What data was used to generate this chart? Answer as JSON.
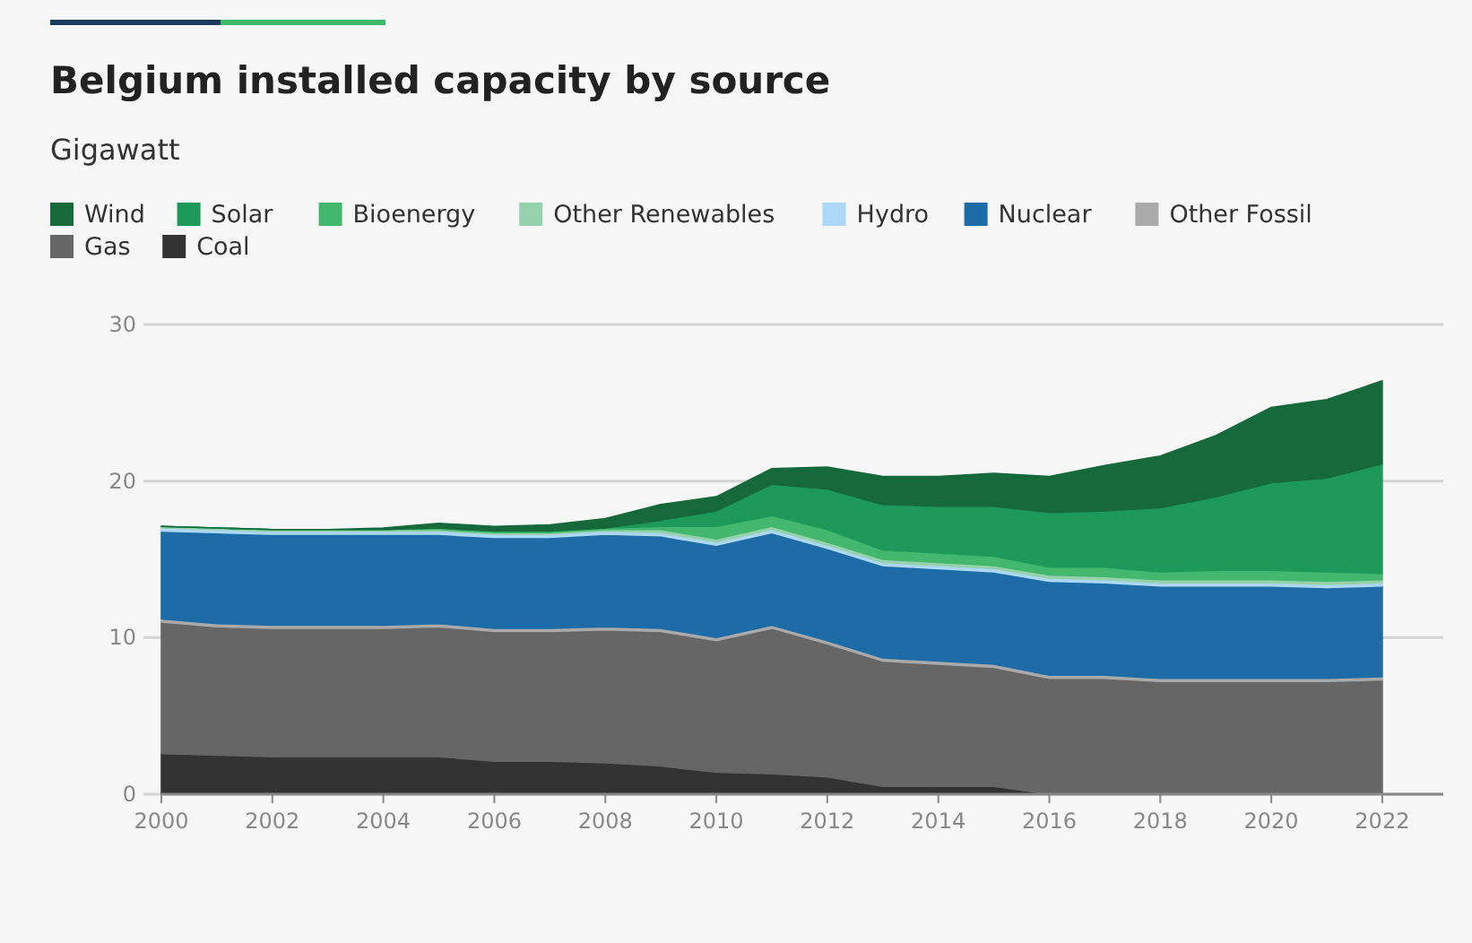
{
  "chart_data": {
    "type": "area",
    "title": "Belgium installed capacity by source",
    "subtitle": "Gigawatt",
    "stacked": true,
    "legend": "top",
    "grid": "y",
    "x": [
      2000,
      2001,
      2002,
      2003,
      2004,
      2005,
      2006,
      2007,
      2008,
      2009,
      2010,
      2011,
      2012,
      2013,
      2014,
      2015,
      2016,
      2017,
      2018,
      2019,
      2020,
      2021,
      2022
    ],
    "xlim": [
      2000,
      2023.1
    ],
    "xticks": [
      2000,
      2002,
      2004,
      2006,
      2008,
      2010,
      2012,
      2014,
      2016,
      2018,
      2020,
      2022
    ],
    "ylim": [
      0,
      30
    ],
    "yticks": [
      0,
      10,
      20,
      30
    ],
    "series": [
      {
        "name": "Coal",
        "color": "#333333",
        "values": [
          2.6,
          2.5,
          2.4,
          2.4,
          2.4,
          2.4,
          2.1,
          2.1,
          2.0,
          1.8,
          1.4,
          1.3,
          1.1,
          0.5,
          0.5,
          0.5,
          0,
          0,
          0,
          0,
          0,
          0,
          0
        ]
      },
      {
        "name": "Gas",
        "color": "#666666",
        "values": [
          8.4,
          8.2,
          8.2,
          8.2,
          8.2,
          8.3,
          8.3,
          8.3,
          8.5,
          8.6,
          8.4,
          9.3,
          8.5,
          8.0,
          7.8,
          7.6,
          7.4,
          7.4,
          7.2,
          7.2,
          7.2,
          7.2,
          7.3
        ]
      },
      {
        "name": "Other Fossil",
        "color": "#aaaaaa",
        "values": [
          0.2,
          0.2,
          0.2,
          0.2,
          0.2,
          0.2,
          0.2,
          0.2,
          0.2,
          0.2,
          0.2,
          0.2,
          0.2,
          0.2,
          0.2,
          0.2,
          0.2,
          0.2,
          0.2,
          0.2,
          0.2,
          0.2,
          0.2
        ]
      },
      {
        "name": "Nuclear",
        "color": "#1d6ca7",
        "values": [
          5.6,
          5.8,
          5.8,
          5.8,
          5.8,
          5.7,
          5.8,
          5.8,
          5.9,
          5.9,
          5.9,
          5.9,
          5.9,
          5.9,
          5.9,
          5.9,
          6.0,
          5.9,
          5.9,
          5.9,
          5.9,
          5.8,
          5.8
        ]
      },
      {
        "name": "Hydro",
        "color": "#acd8f5",
        "values": [
          0.2,
          0.2,
          0.2,
          0.2,
          0.2,
          0.2,
          0.2,
          0.2,
          0.2,
          0.2,
          0.2,
          0.2,
          0.2,
          0.2,
          0.2,
          0.2,
          0.2,
          0.2,
          0.2,
          0.2,
          0.2,
          0.2,
          0.2
        ]
      },
      {
        "name": "Other Renewables",
        "color": "#95d1ad",
        "values": [
          0.1,
          0.1,
          0.1,
          0.1,
          0.1,
          0.1,
          0.1,
          0.1,
          0.1,
          0.2,
          0.2,
          0.2,
          0.2,
          0.2,
          0.2,
          0.2,
          0.2,
          0.2,
          0.2,
          0.2,
          0.2,
          0.2,
          0.2
        ]
      },
      {
        "name": "Bioenergy",
        "color": "#43b76d",
        "values": [
          0,
          0,
          0,
          0,
          0,
          0.1,
          0.1,
          0.1,
          0.1,
          0.2,
          0.8,
          0.7,
          0.8,
          0.6,
          0.6,
          0.6,
          0.5,
          0.6,
          0.5,
          0.6,
          0.6,
          0.6,
          0.4
        ]
      },
      {
        "name": "Solar",
        "color": "#1d9a5a",
        "values": [
          0,
          0,
          0,
          0,
          0,
          0,
          0,
          0,
          0,
          0.4,
          1.0,
          2.0,
          2.6,
          2.9,
          3.0,
          3.2,
          3.5,
          3.6,
          4.1,
          4.7,
          5.6,
          6.0,
          7.0
        ]
      },
      {
        "name": "Wind",
        "color": "#16693a",
        "values": [
          0,
          0,
          0,
          0,
          0.1,
          0.3,
          0.3,
          0.4,
          0.6,
          1.0,
          0.9,
          1.0,
          1.4,
          1.8,
          1.9,
          2.1,
          2.3,
          2.9,
          3.3,
          3.9,
          4.8,
          5.0,
          5.3
        ]
      }
    ]
  }
}
